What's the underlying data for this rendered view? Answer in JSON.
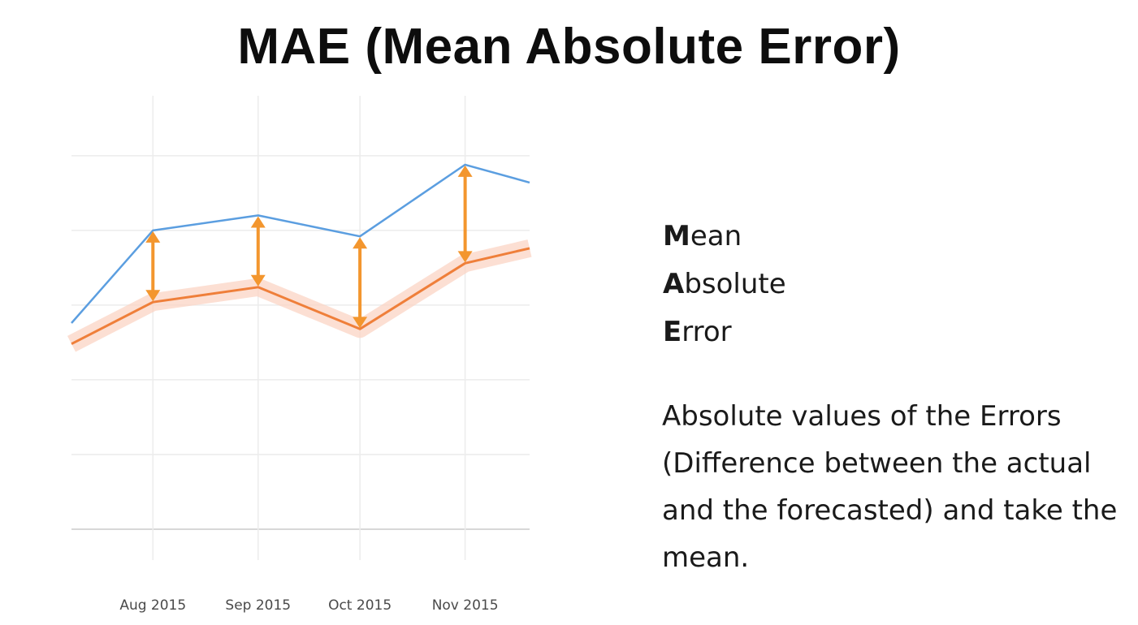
{
  "title": "MAE (Mean Absolute Error)",
  "acronym": [
    {
      "letter": "M",
      "rest": "ean"
    },
    {
      "letter": "A",
      "rest": "bsolute"
    },
    {
      "letter": "E",
      "rest": "rror"
    }
  ],
  "explanation": "Absolute values of the Errors (Difference between the actual and the forecasted) and take the mean.",
  "colors": {
    "actual": "#5b9ee0",
    "forecast": "#ef7f3a",
    "forecast_band": "#fbd4c4",
    "error_arrow": "#f3962e",
    "grid": "#ececec"
  },
  "chart_data": {
    "type": "line",
    "x": [
      "2015-07-08",
      "2015-08-01",
      "2015-09-01",
      "2015-10-01",
      "2015-11-01",
      "2015-11-20"
    ],
    "tick_labels": [
      "Aug 2015",
      "Sep 2015",
      "Oct 2015",
      "Nov 2015"
    ],
    "tick_dates": [
      "2015-08-01",
      "2015-09-01",
      "2015-10-01",
      "2015-11-01"
    ],
    "series": [
      {
        "role": "actual",
        "values": [
          1.4,
          4.5,
          5.0,
          4.3,
          6.7,
          6.1
        ]
      },
      {
        "role": "forecast",
        "values": [
          0.7,
          2.1,
          2.6,
          1.2,
          3.4,
          3.9
        ]
      }
    ],
    "error_arrows_at": [
      "2015-08-01",
      "2015-09-01",
      "2015-10-01",
      "2015-11-01"
    ],
    "xlabel": "",
    "ylabel": "",
    "ylim": [
      -5.5,
      8
    ],
    "grid": true
  }
}
